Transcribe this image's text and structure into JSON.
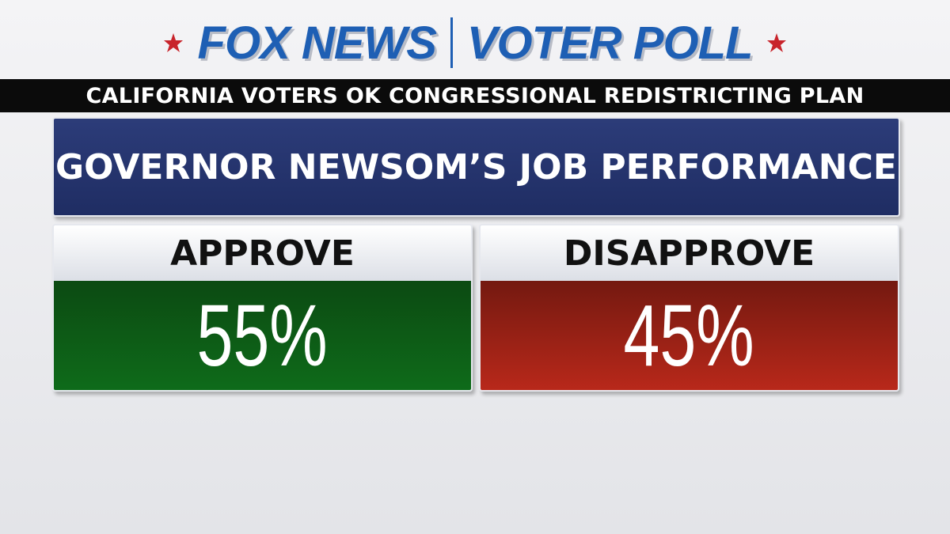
{
  "header": {
    "brand": "FOX NEWS",
    "section": "VOTER POLL"
  },
  "banner": "CALIFORNIA VOTERS OK CONGRESSIONAL REDISTRICTING PLAN",
  "title": "GOVERNOR NEWSOM’S JOB PERFORMANCE",
  "results": [
    {
      "label": "APPROVE",
      "value": "55%"
    },
    {
      "label": "DISAPPROVE",
      "value": "45%"
    }
  ]
}
